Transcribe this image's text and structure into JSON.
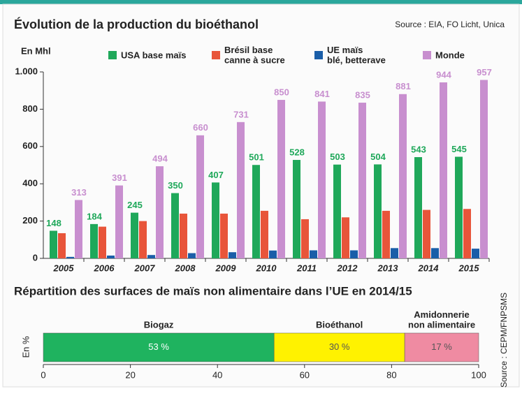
{
  "chart_data": [
    {
      "type": "bar",
      "title": "Évolution de la production du bioéthanol",
      "source": "Source : EIA, FO Licht, Unica",
      "y_label": "En Mhl",
      "categories": [
        "2005",
        "2006",
        "2007",
        "2008",
        "2009",
        "2010",
        "2011",
        "2012",
        "2013",
        "2014",
        "2015"
      ],
      "series": [
        {
          "name": "USA base maïs",
          "color": "#1fa85a",
          "show_labels": true,
          "values": [
            148,
            184,
            245,
            350,
            407,
            501,
            528,
            503,
            504,
            543,
            545
          ]
        },
        {
          "name": "Brésil base\ncanne à sucre",
          "color": "#e8553a",
          "show_labels": false,
          "values": [
            135,
            170,
            200,
            240,
            240,
            255,
            210,
            220,
            255,
            260,
            265
          ]
        },
        {
          "name": "UE maïs\nblé, betterave",
          "color": "#1a5ea8",
          "show_labels": false,
          "values": [
            8,
            15,
            18,
            28,
            33,
            42,
            43,
            43,
            55,
            55,
            52
          ]
        },
        {
          "name": "Monde",
          "color": "#c88fcf",
          "show_labels": true,
          "values": [
            313,
            391,
            494,
            660,
            731,
            850,
            841,
            835,
            881,
            944,
            957
          ]
        }
      ],
      "ylim": [
        0,
        1000
      ],
      "yticks": [
        0,
        200,
        400,
        600,
        800,
        {
          "value": 1000,
          "label": "1.000"
        }
      ],
      "grid": false
    },
    {
      "type": "stacked_hbar",
      "title": "Répartition des surfaces de maïs non alimentaire dans l’UE en 2014/15",
      "source": "Source : CEPM/FNPSMS",
      "y_label": "En %",
      "series": [
        {
          "name": "Biogaz",
          "color": "#1fb35f",
          "values": [
            53
          ],
          "value_labels": [
            "53 %"
          ]
        },
        {
          "name": "Bioéthanol",
          "color": "#fff200",
          "values": [
            30
          ],
          "value_labels": [
            "30 %"
          ]
        },
        {
          "name": "Amidonnerie\nnon alimentaire",
          "color": "#ef8ba2",
          "values": [
            17
          ],
          "value_labels": [
            "17 %"
          ]
        }
      ],
      "xlim": [
        0,
        100
      ],
      "xticks": [
        0,
        20,
        40,
        60,
        80,
        100
      ]
    }
  ]
}
